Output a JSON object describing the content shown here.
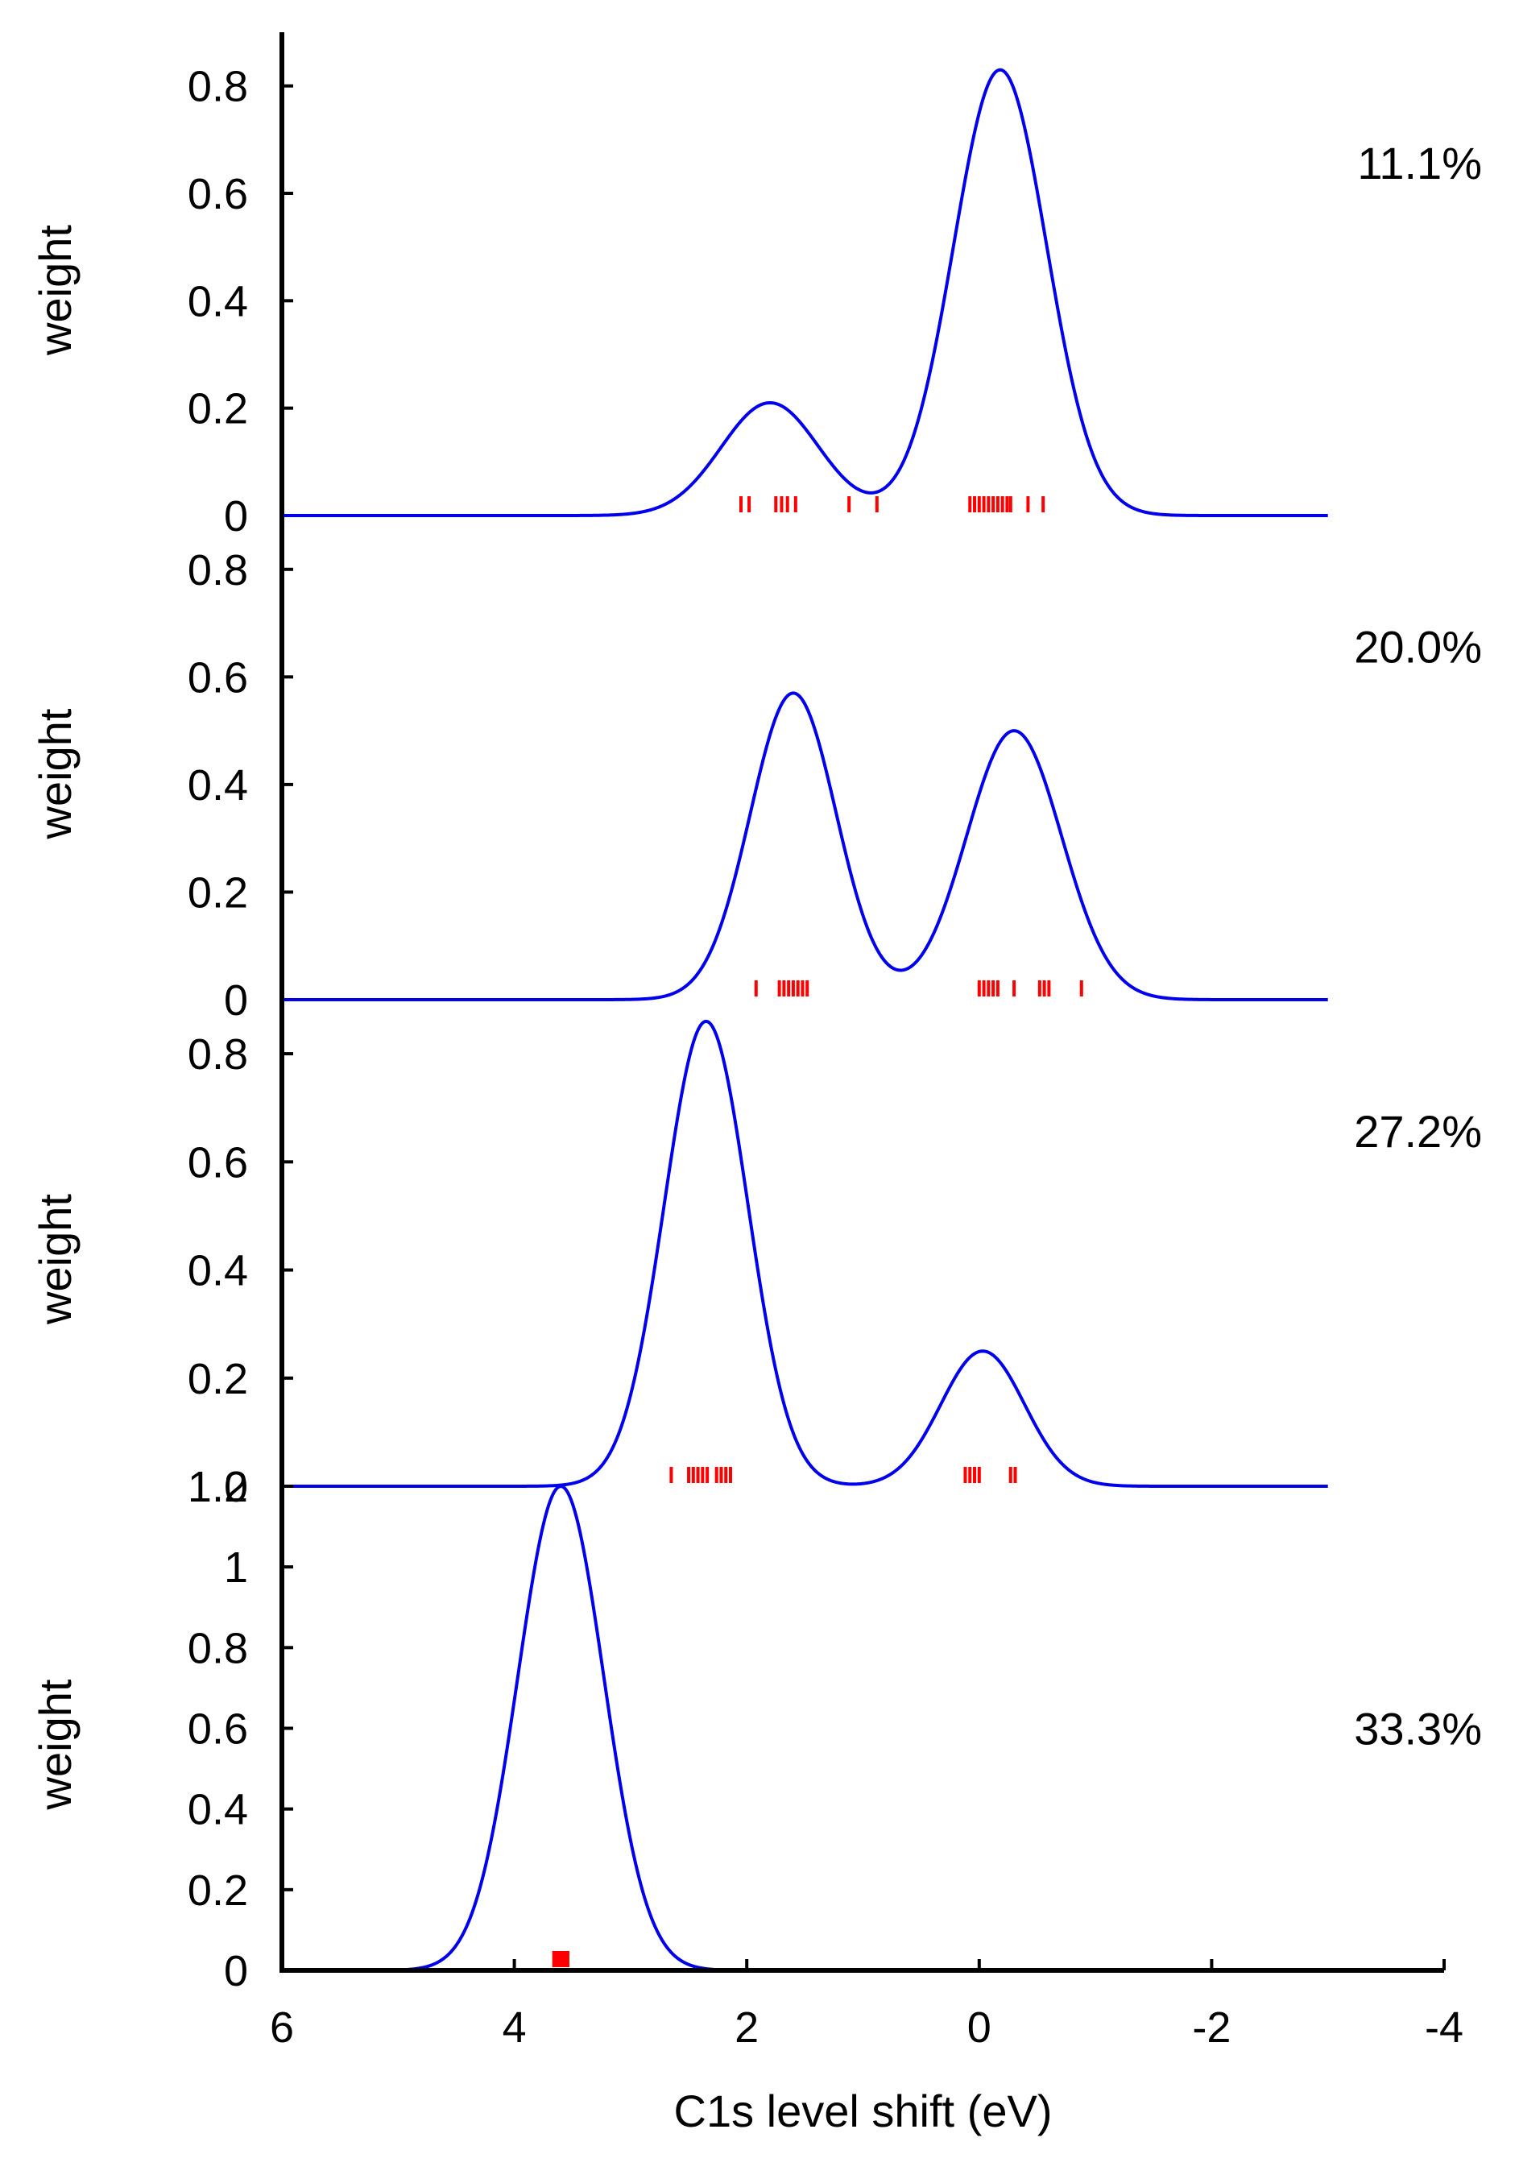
{
  "chart_data": {
    "type": "line",
    "xlabel": "C1s level shift (eV)",
    "xlim": [
      6,
      -4
    ],
    "x_ticks": [
      6,
      4,
      2,
      0,
      -2,
      -4
    ],
    "x_tick_labels": [
      "6",
      "4",
      "2",
      "0",
      "-2",
      "-4"
    ],
    "curve_x_range": [
      6,
      -3
    ],
    "colors": {
      "curve": "#0000ee",
      "markers": "#ff0000",
      "axis": "#000000"
    },
    "panels": [
      {
        "ylabel": "weight",
        "annotation": "11.1%",
        "ylim": [
          0,
          0.9
        ],
        "y_ticks": [
          0,
          0.2,
          0.4,
          0.6,
          0.8
        ],
        "y_tick_labels": [
          "0",
          "0.2",
          "0.4",
          "0.6",
          "0.8"
        ],
        "peaks": [
          {
            "center": 1.8,
            "sigma": 0.42,
            "height": 0.21
          },
          {
            "center": -0.18,
            "sigma": 0.4,
            "height": 0.83
          }
        ],
        "markers": [
          2.05,
          1.98,
          1.75,
          1.7,
          1.65,
          1.58,
          1.12,
          0.88,
          0.08,
          0.04,
          0.0,
          -0.04,
          -0.08,
          -0.12,
          -0.16,
          -0.2,
          -0.24,
          -0.27,
          -0.42,
          -0.55
        ]
      },
      {
        "ylabel": "weight",
        "annotation": "20.0%",
        "ylim": [
          0,
          0.9
        ],
        "y_ticks": [
          0,
          0.2,
          0.4,
          0.6,
          0.8
        ],
        "y_tick_labels": [
          "0",
          "0.2",
          "0.4",
          "0.6",
          "0.8"
        ],
        "peaks": [
          {
            "center": 1.6,
            "sigma": 0.37,
            "height": 0.57
          },
          {
            "center": -0.3,
            "sigma": 0.41,
            "height": 0.5
          }
        ],
        "markers": [
          1.92,
          1.72,
          1.68,
          1.64,
          1.6,
          1.56,
          1.52,
          1.48,
          0.0,
          -0.04,
          -0.08,
          -0.12,
          -0.16,
          -0.3,
          -0.52,
          -0.56,
          -0.6,
          -0.88
        ]
      },
      {
        "ylabel": "weight",
        "annotation": "27.2%",
        "ylim": [
          0,
          0.9
        ],
        "y_ticks": [
          0,
          0.2,
          0.4,
          0.6,
          0.8
        ],
        "y_tick_labels": [
          "0",
          "0.2",
          "0.4",
          "0.6",
          "0.8"
        ],
        "peaks": [
          {
            "center": 2.35,
            "sigma": 0.36,
            "height": 0.86
          },
          {
            "center": -0.03,
            "sigma": 0.36,
            "height": 0.25
          }
        ],
        "markers": [
          2.65,
          2.5,
          2.46,
          2.42,
          2.38,
          2.34,
          2.26,
          2.22,
          2.18,
          2.14,
          0.12,
          0.08,
          0.04,
          0.0,
          -0.27,
          -0.31
        ]
      },
      {
        "ylabel": "weight",
        "annotation": "33.3%",
        "ylim": [
          0,
          1.2
        ],
        "y_ticks": [
          0,
          0.2,
          0.4,
          0.6,
          0.8,
          1,
          1.2
        ],
        "y_tick_labels": [
          "0",
          "0.2",
          "0.4",
          "0.6",
          "0.8",
          "1",
          "1.2"
        ],
        "peaks": [
          {
            "center": 3.6,
            "sigma": 0.37,
            "height": 1.2
          }
        ],
        "markers": [
          3.66,
          3.64,
          3.62,
          3.6,
          3.58,
          3.56,
          3.54
        ]
      }
    ]
  }
}
